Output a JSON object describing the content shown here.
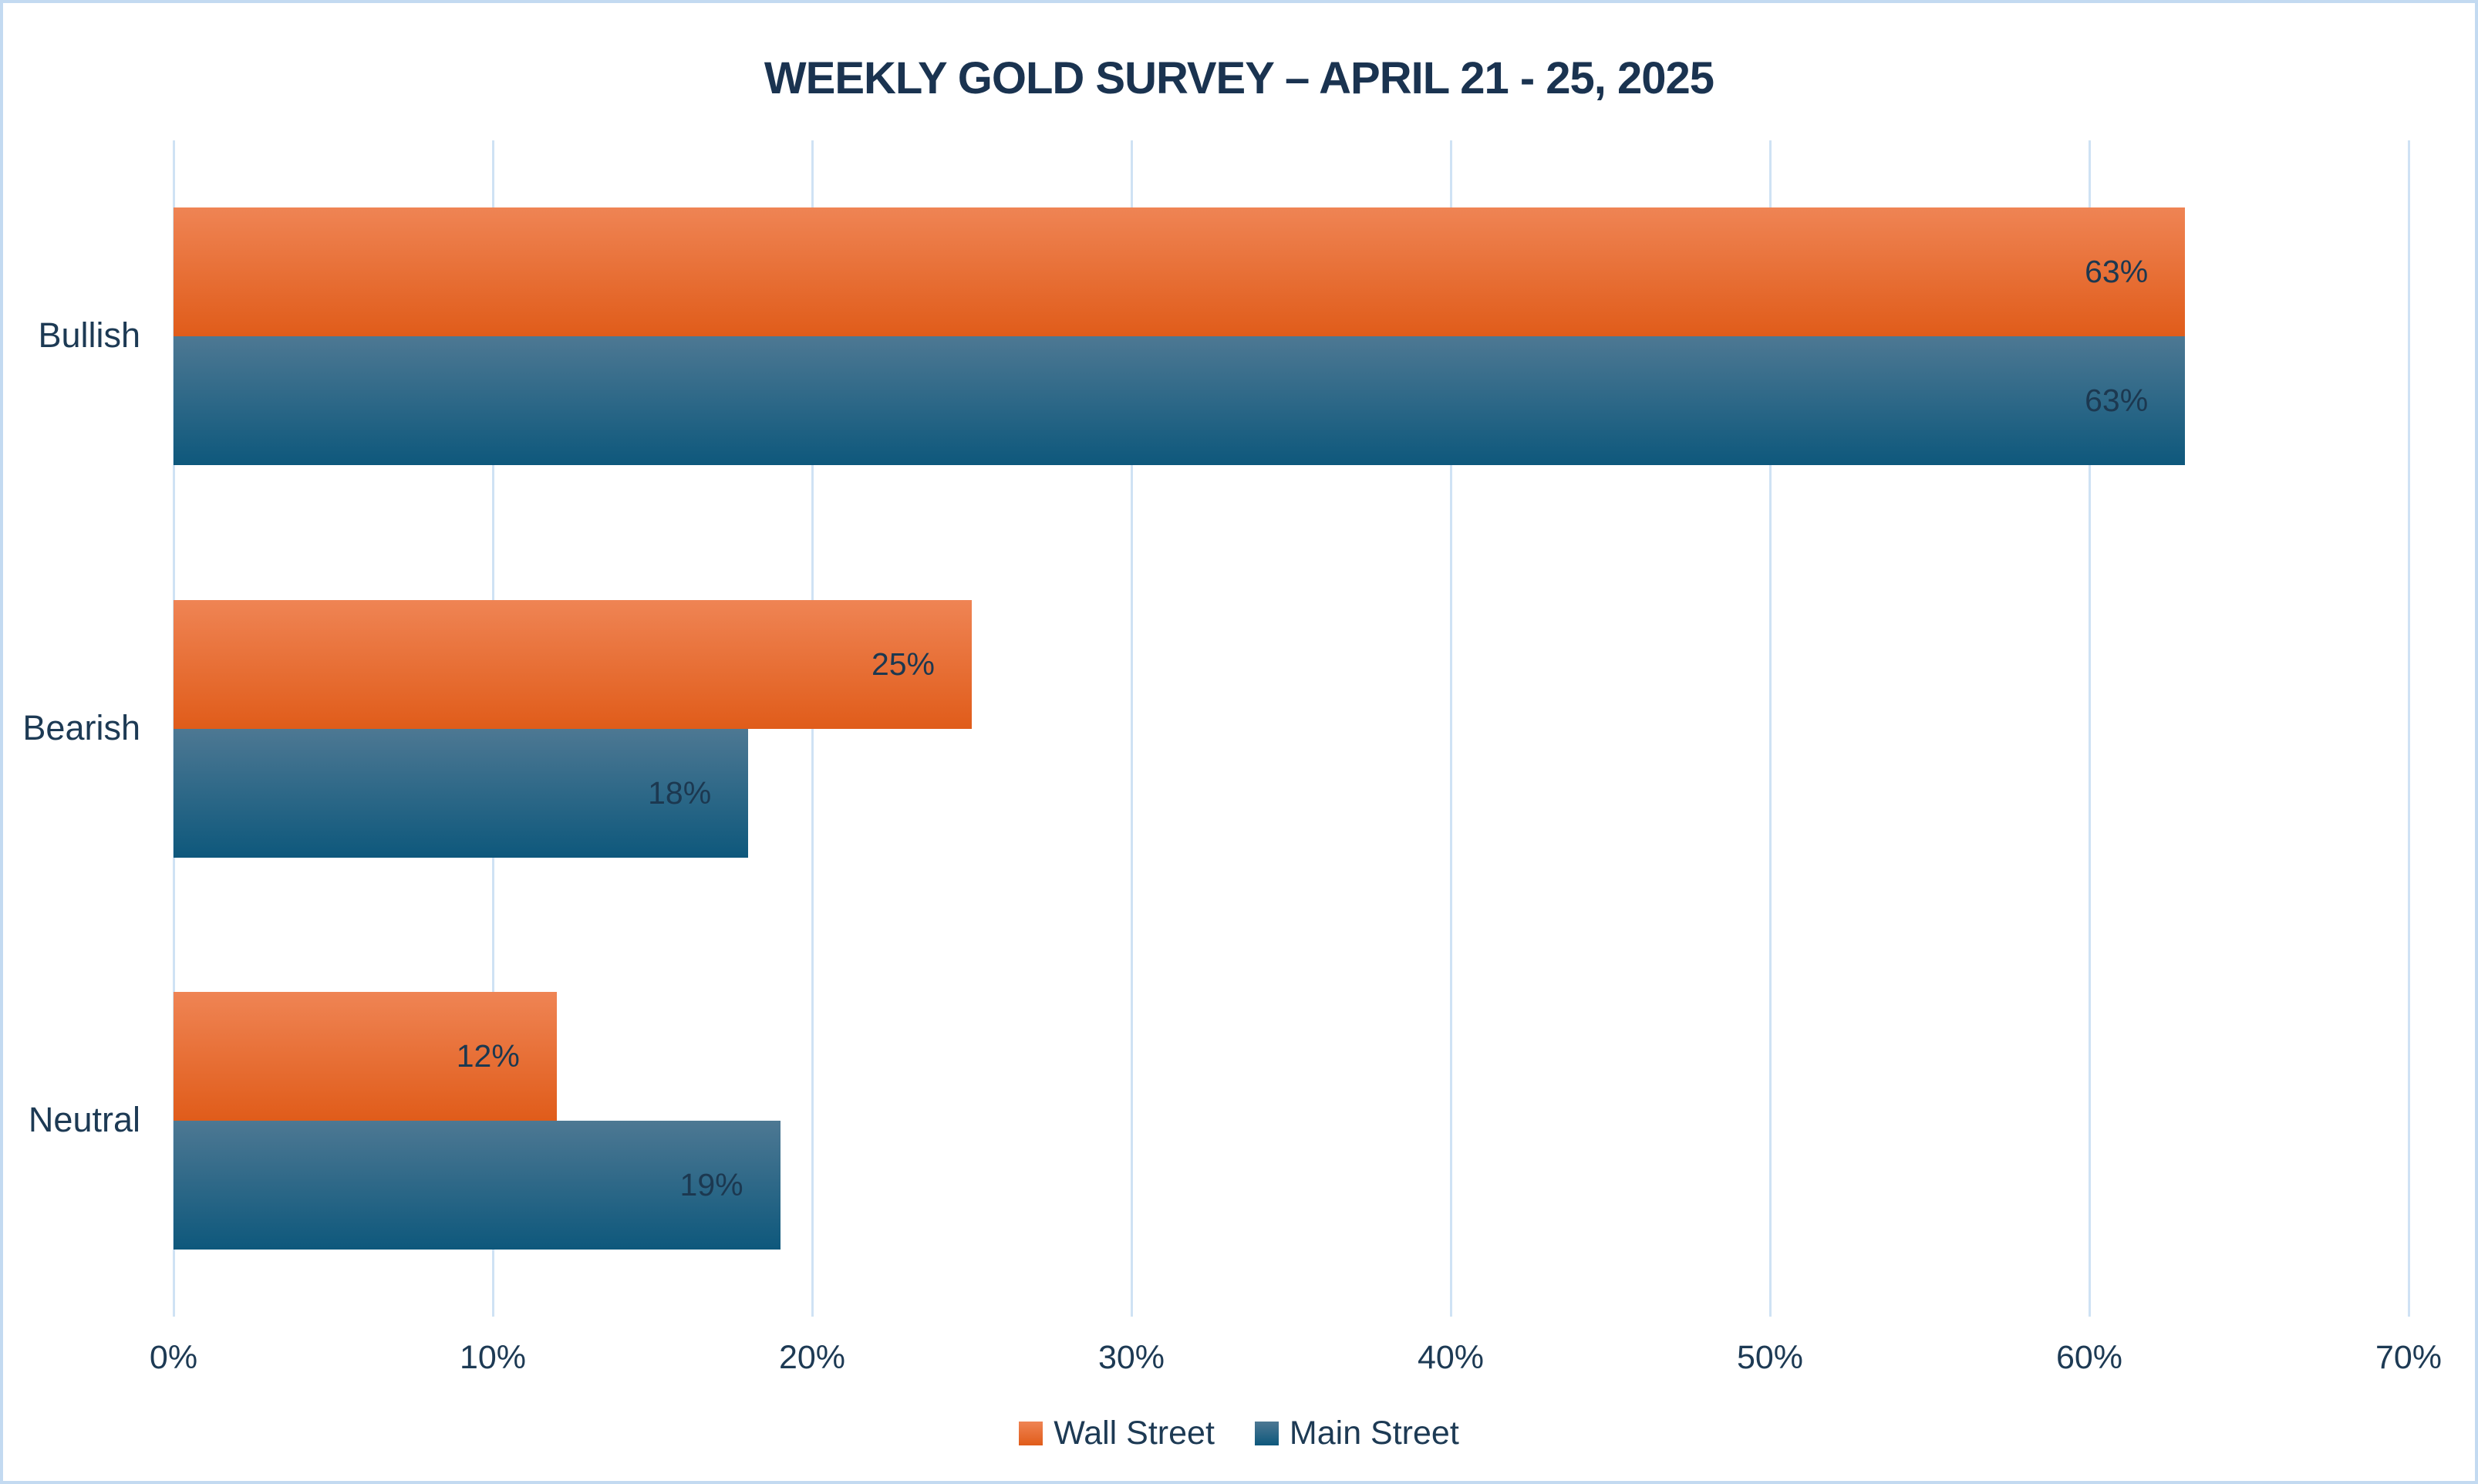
{
  "title": "WEEKLY GOLD SURVEY – APRIL 21 - 25, 2025",
  "chart_data": {
    "type": "bar",
    "orientation": "horizontal",
    "title": "WEEKLY GOLD SURVEY – APRIL 21 - 25, 2025",
    "categories": [
      "Bullish",
      "Bearish",
      "Neutral"
    ],
    "series": [
      {
        "name": "Wall Street",
        "values": [
          63,
          25,
          12
        ],
        "color_top": "#ef8454",
        "color_bottom": "#e05c1a"
      },
      {
        "name": "Main Street",
        "values": [
          63,
          18,
          19
        ],
        "color_top": "#4d7893",
        "color_bottom": "#0e587c"
      }
    ],
    "value_labels": [
      [
        "63%",
        "25%",
        "12%"
      ],
      [
        "63%",
        "18%",
        "19%"
      ]
    ],
    "value_suffix": "%",
    "xlim": [
      0,
      70
    ],
    "x_ticks": [
      "0%",
      "10%",
      "20%",
      "30%",
      "40%",
      "50%",
      "60%",
      "70%"
    ],
    "grid": true,
    "legend_position": "bottom"
  },
  "colors": {
    "title_text": "#1a3350",
    "label_text": "#1d3a54",
    "value_label_text": "#1c3850",
    "gridline": "#cfe2f4",
    "page_border": "#c3daf1",
    "wall_street_orange": "#e05c1a",
    "main_street_blue": "#0e587c"
  }
}
